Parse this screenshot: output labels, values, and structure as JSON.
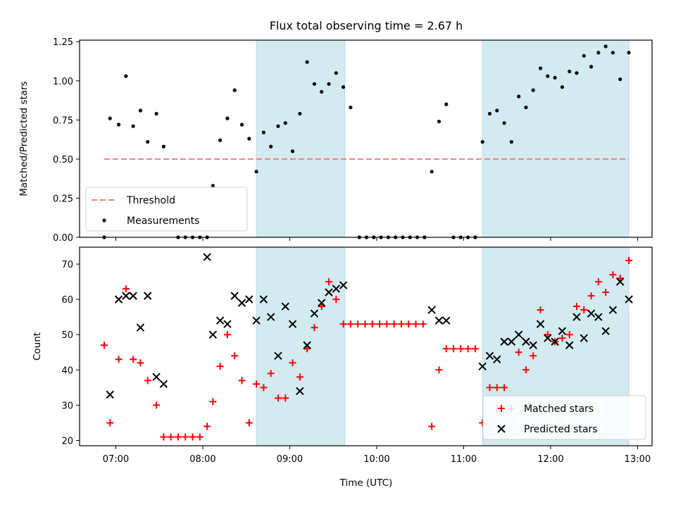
{
  "chart_data": [
    {
      "type": "scatter",
      "title": "Flux total observing time = 2.67 h",
      "xlabel": "",
      "ylabel": "Matched/Predicted stars",
      "xlim": [
        "06:35",
        "13:10"
      ],
      "ylim": [
        0,
        1.26
      ],
      "x_ticks": [
        "07:00",
        "08:00",
        "09:00",
        "10:00",
        "11:00",
        "12:00",
        "13:00"
      ],
      "y_ticks": [
        "0.00",
        "0.25",
        "0.50",
        "0.75",
        "1.00",
        "1.25"
      ],
      "y_tick_values": [
        0,
        0.25,
        0.5,
        0.75,
        1.0,
        1.25
      ],
      "shaded_spans": [
        {
          "start": "08:37",
          "end": "09:38",
          "color": "#d3eaf1"
        },
        {
          "start": "11:13",
          "end": "12:54",
          "color": "#d3eaf1"
        }
      ],
      "threshold": {
        "name": "Threshold",
        "value": 0.5,
        "start": "06:52",
        "end": "12:54",
        "color": "#f08080"
      },
      "series": [
        {
          "name": "Measurements",
          "color": "#000000",
          "marker": "dot",
          "points": [
            [
              "06:52",
              0
            ],
            [
              "06:56",
              0.76
            ],
            [
              "07:02",
              0.72
            ],
            [
              "07:07",
              1.03
            ],
            [
              "07:12",
              0.71
            ],
            [
              "07:17",
              0.81
            ],
            [
              "07:22",
              0.61
            ],
            [
              "07:28",
              0.79
            ],
            [
              "07:33",
              0.58
            ],
            [
              "07:43",
              0
            ],
            [
              "07:48",
              0
            ],
            [
              "07:53",
              0
            ],
            [
              "07:58",
              0
            ],
            [
              "08:03",
              0
            ],
            [
              "08:07",
              0.33
            ],
            [
              "08:12",
              0.62
            ],
            [
              "08:17",
              0.76
            ],
            [
              "08:22",
              0.94
            ],
            [
              "08:27",
              0.72
            ],
            [
              "08:32",
              0.63
            ],
            [
              "08:37",
              0.42
            ],
            [
              "08:42",
              0.67
            ],
            [
              "08:47",
              0.58
            ],
            [
              "08:52",
              0.71
            ],
            [
              "08:57",
              0.73
            ],
            [
              "09:02",
              0.55
            ],
            [
              "09:07",
              0.79
            ],
            [
              "09:12",
              1.12
            ],
            [
              "09:17",
              0.98
            ],
            [
              "09:22",
              0.93
            ],
            [
              "09:27",
              0.98
            ],
            [
              "09:32",
              1.05
            ],
            [
              "09:37",
              0.96
            ],
            [
              "09:42",
              0.83
            ],
            [
              "09:48",
              0
            ],
            [
              "09:53",
              0
            ],
            [
              "09:58",
              0
            ],
            [
              "10:03",
              0
            ],
            [
              "10:08",
              0
            ],
            [
              "10:13",
              0
            ],
            [
              "10:18",
              0
            ],
            [
              "10:23",
              0
            ],
            [
              "10:28",
              0
            ],
            [
              "10:33",
              0
            ],
            [
              "10:38",
              0.42
            ],
            [
              "10:43",
              0.74
            ],
            [
              "10:48",
              0.85
            ],
            [
              "10:53",
              0
            ],
            [
              "10:58",
              0
            ],
            [
              "11:03",
              0
            ],
            [
              "11:08",
              0
            ],
            [
              "11:13",
              0.61
            ],
            [
              "11:18",
              0.79
            ],
            [
              "11:23",
              0.81
            ],
            [
              "11:28",
              0.73
            ],
            [
              "11:33",
              0.61
            ],
            [
              "11:38",
              0.9
            ],
            [
              "11:43",
              0.83
            ],
            [
              "11:48",
              0.94
            ],
            [
              "11:53",
              1.08
            ],
            [
              "11:58",
              1.03
            ],
            [
              "12:03",
              1.02
            ],
            [
              "12:08",
              0.96
            ],
            [
              "12:13",
              1.06
            ],
            [
              "12:18",
              1.05
            ],
            [
              "12:23",
              1.16
            ],
            [
              "12:28",
              1.09
            ],
            [
              "12:33",
              1.18
            ],
            [
              "12:38",
              1.22
            ],
            [
              "12:43",
              1.18
            ],
            [
              "12:48",
              1.01
            ],
            [
              "12:54",
              1.18
            ]
          ]
        }
      ],
      "legend": {
        "placement": "lower-left"
      }
    },
    {
      "type": "scatter",
      "title": "",
      "xlabel": "Time (UTC)",
      "ylabel": "Count",
      "xlim": [
        "06:35",
        "13:10"
      ],
      "ylim": [
        18.5,
        74.8
      ],
      "x_ticks": [
        "07:00",
        "08:00",
        "09:00",
        "10:00",
        "11:00",
        "12:00",
        "13:00"
      ],
      "y_ticks": [
        "20",
        "30",
        "40",
        "50",
        "60",
        "70"
      ],
      "y_tick_values": [
        20,
        30,
        40,
        50,
        60,
        70
      ],
      "shaded_spans": [
        {
          "start": "08:37",
          "end": "09:38",
          "color": "#d3eaf1"
        },
        {
          "start": "11:13",
          "end": "12:54",
          "color": "#d3eaf1"
        }
      ],
      "series": [
        {
          "name": "Matched stars",
          "color": "#ff0000",
          "marker": "plus",
          "points": [
            [
              "06:52",
              47
            ],
            [
              "06:56",
              25
            ],
            [
              "07:02",
              43
            ],
            [
              "07:07",
              63
            ],
            [
              "07:12",
              43
            ],
            [
              "07:17",
              42
            ],
            [
              "07:22",
              37
            ],
            [
              "07:28",
              30
            ],
            [
              "07:33",
              21
            ],
            [
              "07:38",
              21
            ],
            [
              "07:43",
              21
            ],
            [
              "07:48",
              21
            ],
            [
              "07:53",
              21
            ],
            [
              "07:58",
              21
            ],
            [
              "08:03",
              24
            ],
            [
              "08:07",
              31
            ],
            [
              "08:12",
              41
            ],
            [
              "08:17",
              50
            ],
            [
              "08:22",
              44
            ],
            [
              "08:27",
              37
            ],
            [
              "08:32",
              25
            ],
            [
              "08:37",
              36
            ],
            [
              "08:42",
              35
            ],
            [
              "08:47",
              39
            ],
            [
              "08:52",
              32
            ],
            [
              "08:57",
              32
            ],
            [
              "09:02",
              42
            ],
            [
              "09:07",
              38
            ],
            [
              "09:12",
              46
            ],
            [
              "09:17",
              52
            ],
            [
              "09:22",
              58
            ],
            [
              "09:27",
              65
            ],
            [
              "09:32",
              60
            ],
            [
              "09:37",
              53
            ],
            [
              "09:42",
              53
            ],
            [
              "09:47",
              53
            ],
            [
              "09:52",
              53
            ],
            [
              "09:57",
              53
            ],
            [
              "10:02",
              53
            ],
            [
              "10:07",
              53
            ],
            [
              "10:12",
              53
            ],
            [
              "10:17",
              53
            ],
            [
              "10:22",
              53
            ],
            [
              "10:27",
              53
            ],
            [
              "10:32",
              53
            ],
            [
              "10:38",
              24
            ],
            [
              "10:43",
              40
            ],
            [
              "10:48",
              46
            ],
            [
              "10:53",
              46
            ],
            [
              "10:58",
              46
            ],
            [
              "11:03",
              46
            ],
            [
              "11:08",
              46
            ],
            [
              "11:13",
              25
            ],
            [
              "11:18",
              35
            ],
            [
              "11:23",
              35
            ],
            [
              "11:28",
              35
            ],
            [
              "11:33",
              29
            ],
            [
              "11:38",
              45
            ],
            [
              "11:43",
              40
            ],
            [
              "11:48",
              44
            ],
            [
              "11:53",
              57
            ],
            [
              "11:58",
              50
            ],
            [
              "12:03",
              48
            ],
            [
              "12:08",
              49
            ],
            [
              "12:13",
              50
            ],
            [
              "12:18",
              58
            ],
            [
              "12:23",
              57
            ],
            [
              "12:28",
              61
            ],
            [
              "12:33",
              65
            ],
            [
              "12:38",
              62
            ],
            [
              "12:43",
              67
            ],
            [
              "12:48",
              66
            ],
            [
              "12:54",
              71
            ]
          ]
        },
        {
          "name": "Predicted stars",
          "color": "#000000",
          "marker": "x",
          "points": [
            [
              "06:56",
              33
            ],
            [
              "07:02",
              60
            ],
            [
              "07:07",
              61
            ],
            [
              "07:12",
              61
            ],
            [
              "07:17",
              52
            ],
            [
              "07:22",
              61
            ],
            [
              "07:28",
              38
            ],
            [
              "07:33",
              36
            ],
            [
              "08:03",
              72
            ],
            [
              "08:07",
              50
            ],
            [
              "08:12",
              54
            ],
            [
              "08:17",
              53
            ],
            [
              "08:22",
              61
            ],
            [
              "08:27",
              59
            ],
            [
              "08:32",
              60
            ],
            [
              "08:37",
              54
            ],
            [
              "08:42",
              60
            ],
            [
              "08:47",
              55
            ],
            [
              "08:52",
              44
            ],
            [
              "08:57",
              58
            ],
            [
              "09:02",
              53
            ],
            [
              "09:07",
              34
            ],
            [
              "09:12",
              47
            ],
            [
              "09:17",
              56
            ],
            [
              "09:22",
              59
            ],
            [
              "09:27",
              62
            ],
            [
              "09:32",
              63
            ],
            [
              "09:37",
              64
            ],
            [
              "10:38",
              57
            ],
            [
              "10:43",
              54
            ],
            [
              "10:48",
              54
            ],
            [
              "11:13",
              41
            ],
            [
              "11:18",
              44
            ],
            [
              "11:23",
              43
            ],
            [
              "11:28",
              48
            ],
            [
              "11:33",
              48
            ],
            [
              "11:38",
              50
            ],
            [
              "11:43",
              48
            ],
            [
              "11:48",
              47
            ],
            [
              "11:53",
              53
            ],
            [
              "11:58",
              49
            ],
            [
              "12:03",
              48
            ],
            [
              "12:08",
              51
            ],
            [
              "12:13",
              47
            ],
            [
              "12:18",
              55
            ],
            [
              "12:23",
              49
            ],
            [
              "12:28",
              56
            ],
            [
              "12:33",
              55
            ],
            [
              "12:38",
              51
            ],
            [
              "12:43",
              57
            ],
            [
              "12:48",
              65
            ],
            [
              "12:54",
              60
            ]
          ]
        }
      ],
      "legend": {
        "placement": "lower-right"
      }
    }
  ]
}
